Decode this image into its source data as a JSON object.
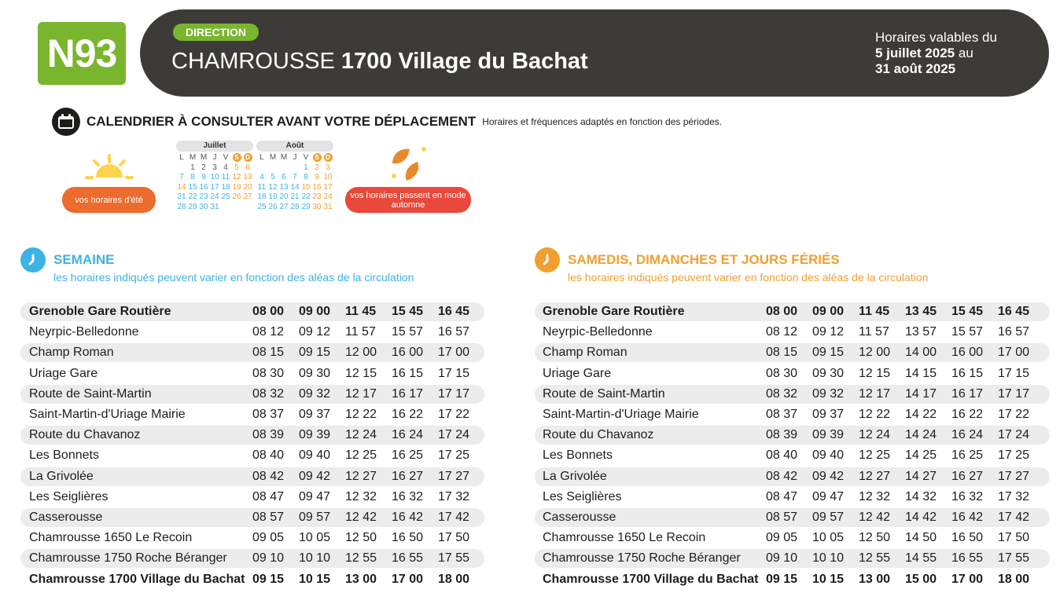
{
  "header": {
    "line": "N93",
    "direction_label": "DIRECTION",
    "dest_city": "CHAMROUSSE",
    "dest_stop": "1700 Village du Bachat",
    "validity_prefix": "Horaires valables du",
    "validity_start": "5 juillet 2025",
    "validity_mid": "au",
    "validity_end": "31 août 2025",
    "line_color": "#7ab52e",
    "bg_color": "#3d3b38"
  },
  "calendar": {
    "title": "CALENDRIER À CONSULTER AVANT VOTRE DÉPLACEMENT",
    "subtitle": "Horaires et fréquences adaptés en fonction des périodes.",
    "summer_label": "vos horaires d'été",
    "autumn_label": "vos horaires passent en mode automne",
    "summer_color": "#ec6b2d",
    "autumn_color": "#e8493b",
    "weekdays": [
      "L",
      "M",
      "M",
      "J",
      "V",
      "S",
      "D"
    ],
    "months": [
      {
        "name": "Juillet",
        "offset": 1,
        "days": [
          [
            "1",
            "g"
          ],
          [
            "2",
            "g"
          ],
          [
            "3",
            "g"
          ],
          [
            "4",
            "g"
          ],
          [
            "5",
            "o"
          ],
          [
            "6",
            "o"
          ],
          [
            "7",
            "b"
          ],
          [
            "8",
            "b"
          ],
          [
            "9",
            "b"
          ],
          [
            "10",
            "b"
          ],
          [
            "11",
            "b"
          ],
          [
            "12",
            "o"
          ],
          [
            "13",
            "o"
          ],
          [
            "14",
            "o"
          ],
          [
            "15",
            "b"
          ],
          [
            "16",
            "b"
          ],
          [
            "17",
            "b"
          ],
          [
            "18",
            "b"
          ],
          [
            "19",
            "o"
          ],
          [
            "20",
            "o"
          ],
          [
            "21",
            "b"
          ],
          [
            "22",
            "b"
          ],
          [
            "23",
            "b"
          ],
          [
            "24",
            "b"
          ],
          [
            "25",
            "b"
          ],
          [
            "26",
            "o"
          ],
          [
            "27",
            "o"
          ],
          [
            "28",
            "b"
          ],
          [
            "29",
            "b"
          ],
          [
            "30",
            "b"
          ],
          [
            "31",
            "b"
          ]
        ]
      },
      {
        "name": "Août",
        "offset": 4,
        "days": [
          [
            "1",
            "b"
          ],
          [
            "2",
            "o"
          ],
          [
            "3",
            "o"
          ],
          [
            "4",
            "b"
          ],
          [
            "5",
            "b"
          ],
          [
            "6",
            "b"
          ],
          [
            "7",
            "b"
          ],
          [
            "8",
            "b"
          ],
          [
            "9",
            "o"
          ],
          [
            "10",
            "o"
          ],
          [
            "11",
            "b"
          ],
          [
            "12",
            "b"
          ],
          [
            "13",
            "b"
          ],
          [
            "14",
            "b"
          ],
          [
            "15",
            "o"
          ],
          [
            "16",
            "o"
          ],
          [
            "17",
            "o"
          ],
          [
            "18",
            "b"
          ],
          [
            "19",
            "b"
          ],
          [
            "20",
            "b"
          ],
          [
            "21",
            "b"
          ],
          [
            "22",
            "b"
          ],
          [
            "23",
            "o"
          ],
          [
            "24",
            "o"
          ],
          [
            "25",
            "b"
          ],
          [
            "26",
            "b"
          ],
          [
            "27",
            "b"
          ],
          [
            "28",
            "b"
          ],
          [
            "29",
            "b"
          ],
          [
            "30",
            "o"
          ],
          [
            "31",
            "o"
          ]
        ]
      }
    ]
  },
  "note": "les horaires indiqués peuvent varier en fonction des aléas de la circulation",
  "sections": [
    {
      "title": "SEMAINE",
      "color": "#3db3e3",
      "stops": [
        "Grenoble Gare Routière",
        "Neyrpic-Belledonne",
        "Champ Roman",
        "Uriage Gare",
        "Route de Saint-Martin",
        "Saint-Martin-d'Uriage Mairie",
        "Route du Chavanoz",
        "Les Bonnets",
        "La Grivolée",
        "Les Seiglières",
        "Casserousse",
        "Chamrousse 1650 Le Recoin",
        "Chamrousse 1750 Roche Béranger",
        "Chamrousse 1700 Village du Bachat"
      ],
      "times": [
        [
          "08 00",
          "09 00",
          "11 45",
          "15 45",
          "16 45"
        ],
        [
          "08 12",
          "09 12",
          "11 57",
          "15 57",
          "16 57"
        ],
        [
          "08 15",
          "09 15",
          "12 00",
          "16 00",
          "17 00"
        ],
        [
          "08 30",
          "09 30",
          "12 15",
          "16 15",
          "17 15"
        ],
        [
          "08 32",
          "09 32",
          "12 17",
          "16 17",
          "17 17"
        ],
        [
          "08 37",
          "09 37",
          "12 22",
          "16 22",
          "17 22"
        ],
        [
          "08 39",
          "09 39",
          "12 24",
          "16 24",
          "17 24"
        ],
        [
          "08 40",
          "09 40",
          "12 25",
          "16 25",
          "17 25"
        ],
        [
          "08 42",
          "09 42",
          "12 27",
          "16 27",
          "17 27"
        ],
        [
          "08 47",
          "09 47",
          "12 32",
          "16 32",
          "17 32"
        ],
        [
          "08 57",
          "09 57",
          "12 42",
          "16 42",
          "17 42"
        ],
        [
          "09 05",
          "10 05",
          "12 50",
          "16 50",
          "17 50"
        ],
        [
          "09 10",
          "10 10",
          "12 55",
          "16 55",
          "17 55"
        ],
        [
          "09 15",
          "10 15",
          "13 00",
          "17 00",
          "18 00"
        ]
      ]
    },
    {
      "title": "SAMEDIS, DIMANCHES ET JOURS FÉRIÉS",
      "color": "#f0a030",
      "stops": [
        "Grenoble Gare Routière",
        "Neyrpic-Belledonne",
        "Champ Roman",
        "Uriage Gare",
        "Route de Saint-Martin",
        "Saint-Martin-d'Uriage Mairie",
        "Route du Chavanoz",
        "Les Bonnets",
        "La Grivolée",
        "Les Seiglières",
        "Casserousse",
        "Chamrousse 1650 Le Recoin",
        "Chamrousse 1750 Roche Béranger",
        "Chamrousse 1700 Village du Bachat"
      ],
      "times": [
        [
          "08 00",
          "09 00",
          "11 45",
          "13 45",
          "15 45",
          "16 45"
        ],
        [
          "08 12",
          "09 12",
          "11 57",
          "13 57",
          "15 57",
          "16 57"
        ],
        [
          "08 15",
          "09 15",
          "12 00",
          "14 00",
          "16 00",
          "17 00"
        ],
        [
          "08 30",
          "09 30",
          "12 15",
          "14 15",
          "16 15",
          "17 15"
        ],
        [
          "08 32",
          "09 32",
          "12 17",
          "14 17",
          "16 17",
          "17 17"
        ],
        [
          "08 37",
          "09 37",
          "12 22",
          "14 22",
          "16 22",
          "17 22"
        ],
        [
          "08 39",
          "09 39",
          "12 24",
          "14 24",
          "16 24",
          "17 24"
        ],
        [
          "08 40",
          "09 40",
          "12 25",
          "14 25",
          "16 25",
          "17 25"
        ],
        [
          "08 42",
          "09 42",
          "12 27",
          "14 27",
          "16 27",
          "17 27"
        ],
        [
          "08 47",
          "09 47",
          "12 32",
          "14 32",
          "16 32",
          "17 32"
        ],
        [
          "08 57",
          "09 57",
          "12 42",
          "14 42",
          "16 42",
          "17 42"
        ],
        [
          "09 05",
          "10 05",
          "12 50",
          "14 50",
          "16 50",
          "17 50"
        ],
        [
          "09 10",
          "10 10",
          "12 55",
          "14 55",
          "16 55",
          "17 55"
        ],
        [
          "09 15",
          "10 15",
          "13 00",
          "15 00",
          "17 00",
          "18 00"
        ]
      ]
    }
  ]
}
